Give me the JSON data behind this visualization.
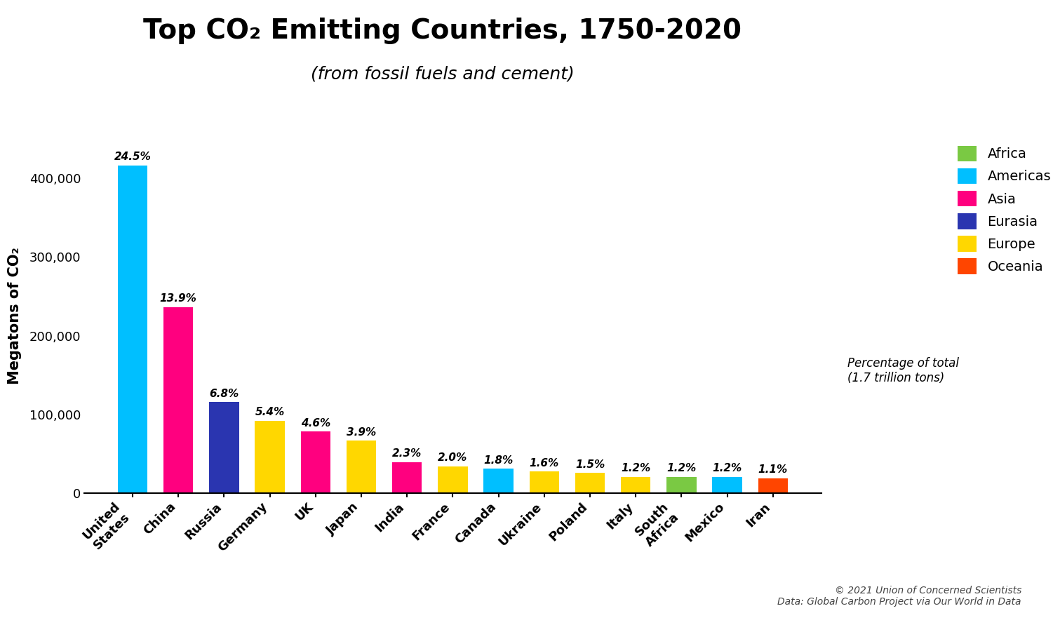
{
  "countries": [
    "United\nStates",
    "China",
    "Russia",
    "Germany",
    "UK",
    "Japan",
    "India",
    "France",
    "Canada",
    "Ukraine",
    "Poland",
    "Italy",
    "South\nAfrica",
    "Mexico",
    "Iran"
  ],
  "values": [
    416500,
    236300,
    115600,
    91800,
    78200,
    66300,
    39100,
    34000,
    30600,
    27200,
    25500,
    20400,
    20400,
    20400,
    18700
  ],
  "percentages": [
    "24.5%",
    "13.9%",
    "6.8%",
    "5.4%",
    "4.6%",
    "3.9%",
    "2.3%",
    "2.0%",
    "1.8%",
    "1.6%",
    "1.5%",
    "1.2%",
    "1.2%",
    "1.2%",
    "1.1%"
  ],
  "bar_colors": [
    "#00BFFF",
    "#FF007F",
    "#2A35B0",
    "#FFD700",
    "#FF007F",
    "#FFD700",
    "#FF007F",
    "#FFD700",
    "#00BFFF",
    "#FFD700",
    "#FFD700",
    "#FFD700",
    "#7AC943",
    "#00BFFF",
    "#FF4500"
  ],
  "region_colors_ordered": [
    [
      "Africa",
      "#7AC943"
    ],
    [
      "Americas",
      "#00BFFF"
    ],
    [
      "Asia",
      "#FF007F"
    ],
    [
      "Eurasia",
      "#2A35B0"
    ],
    [
      "Europe",
      "#FFD700"
    ],
    [
      "Oceania",
      "#FF4500"
    ]
  ],
  "title": "Top CO₂ Emitting Countries, 1750-2020",
  "subtitle": "(from fossil fuels and cement)",
  "ylabel": "Megatons of CO₂",
  "legend_note": "Percentage of total\n(1.7 trillion tons)",
  "copyright_line1": "© 2021 Union of Concerned Scientists",
  "copyright_line2": "Data: Global Carbon Project via Our World in Data",
  "ylim": [
    0,
    450000
  ],
  "yticks": [
    0,
    100000,
    200000,
    300000,
    400000
  ],
  "ytick_labels": [
    "0",
    "100,000",
    "200,000",
    "300,000",
    "400,000"
  ],
  "background_color": "#FFFFFF",
  "title_fontsize": 28,
  "subtitle_fontsize": 18,
  "ylabel_fontsize": 15,
  "tick_fontsize": 13,
  "bar_label_fontsize": 11,
  "legend_fontsize": 14
}
